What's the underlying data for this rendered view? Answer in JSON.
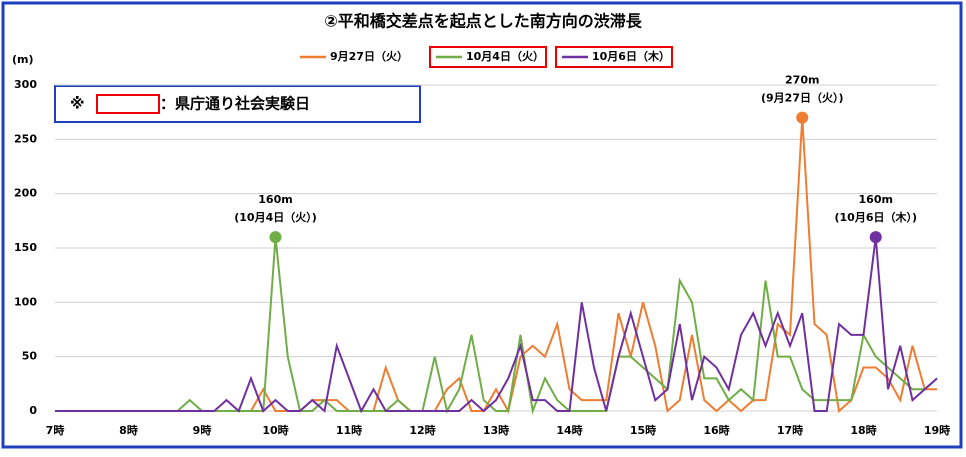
{
  "chart_data": {
    "type": "line",
    "title": "②平和橋交差点を起点とした南方向の渋滞長",
    "y_label": "(m)",
    "note": {
      "symbol": "※",
      "text": "：県庁通り社会実験日"
    },
    "categories": [
      "7時",
      null,
      null,
      null,
      null,
      null,
      "8時",
      null,
      null,
      null,
      null,
      null,
      "9時",
      null,
      null,
      null,
      null,
      null,
      "10時",
      null,
      null,
      null,
      null,
      null,
      "11時",
      null,
      null,
      null,
      null,
      null,
      "12時",
      null,
      null,
      null,
      null,
      null,
      "13時",
      null,
      null,
      null,
      null,
      null,
      "14時",
      null,
      null,
      null,
      null,
      null,
      "15時",
      null,
      null,
      null,
      null,
      null,
      "16時",
      null,
      null,
      null,
      null,
      null,
      "17時",
      null,
      null,
      null,
      null,
      null,
      "18時",
      null,
      null,
      null,
      null,
      null,
      "19時"
    ],
    "series": [
      {
        "name": "9月27日（火）",
        "color": "#ed7d31",
        "annotation": [
          "270m",
          "(9月27日（火）)"
        ],
        "values": [
          0,
          0,
          0,
          0,
          0,
          0,
          0,
          0,
          0,
          0,
          0,
          0,
          0,
          0,
          0,
          0,
          0,
          20,
          0,
          0,
          0,
          10,
          10,
          10,
          0,
          0,
          0,
          40,
          10,
          0,
          0,
          0,
          20,
          30,
          0,
          0,
          20,
          0,
          50,
          60,
          50,
          80,
          20,
          10,
          10,
          10,
          90,
          50,
          100,
          60,
          0,
          10,
          70,
          10,
          0,
          10,
          0,
          10,
          10,
          80,
          70,
          270,
          80,
          70,
          0,
          10,
          40,
          40,
          30,
          10,
          60,
          20,
          20
        ]
      },
      {
        "name": "10月4日（火）",
        "color": "#70ad47",
        "highlight": true,
        "annotation": [
          "160m",
          "(10月4日（火）)"
        ],
        "values": [
          0,
          0,
          0,
          0,
          0,
          0,
          0,
          0,
          0,
          0,
          0,
          10,
          0,
          0,
          0,
          0,
          0,
          0,
          160,
          50,
          0,
          0,
          10,
          0,
          0,
          0,
          0,
          0,
          10,
          0,
          0,
          50,
          0,
          20,
          70,
          10,
          0,
          0,
          70,
          0,
          30,
          10,
          0,
          0,
          0,
          0,
          50,
          50,
          40,
          30,
          20,
          120,
          100,
          30,
          30,
          10,
          20,
          10,
          120,
          50,
          50,
          20,
          10,
          10,
          10,
          10,
          70,
          50,
          40,
          30,
          20,
          20,
          30
        ]
      },
      {
        "name": "10月6日（木）",
        "color": "#7030a0",
        "highlight": true,
        "annotation": [
          "160m",
          "(10月6日（木）)"
        ],
        "values": [
          0,
          0,
          0,
          0,
          0,
          0,
          0,
          0,
          0,
          0,
          0,
          0,
          0,
          0,
          10,
          0,
          30,
          0,
          10,
          0,
          0,
          10,
          0,
          60,
          30,
          0,
          20,
          0,
          0,
          0,
          0,
          0,
          0,
          0,
          10,
          0,
          10,
          30,
          60,
          10,
          10,
          0,
          0,
          100,
          40,
          0,
          50,
          90,
          50,
          10,
          20,
          80,
          10,
          50,
          40,
          20,
          70,
          90,
          60,
          90,
          60,
          90,
          0,
          0,
          80,
          70,
          70,
          160,
          20,
          60,
          10,
          20,
          30
        ]
      }
    ],
    "ylim": [
      0,
      300
    ],
    "yticks": [
      0,
      50,
      100,
      150,
      200,
      250,
      300
    ],
    "grid": true
  }
}
